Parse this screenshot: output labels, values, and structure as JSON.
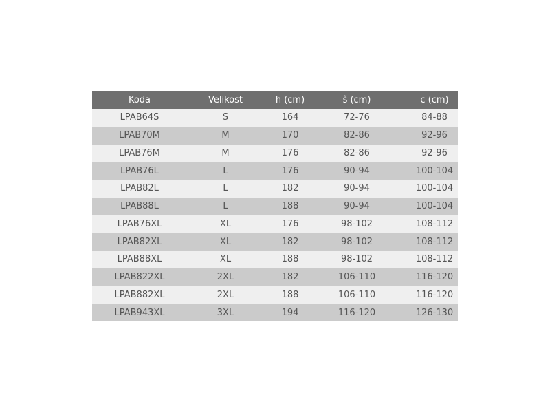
{
  "table": {
    "headers": [
      "Koda",
      "Velikost",
      "h (cm)",
      "š (cm)",
      "c (cm)"
    ],
    "rows": [
      [
        "LPAB64S",
        "S",
        "164",
        "72-76",
        "84-88"
      ],
      [
        "LPAB70M",
        "M",
        "170",
        "82-86",
        "92-96"
      ],
      [
        "LPAB76M",
        "M",
        "176",
        "82-86",
        "92-96"
      ],
      [
        "LPAB76L",
        "L",
        "176",
        "90-94",
        "100-104"
      ],
      [
        "LPAB82L",
        "L",
        "182",
        "90-94",
        "100-104"
      ],
      [
        "LPAB88L",
        "L",
        "188",
        "90-94",
        "100-104"
      ],
      [
        "LPAB76XL",
        "XL",
        "176",
        "98-102",
        "108-112"
      ],
      [
        "LPAB82XL",
        "XL",
        "182",
        "98-102",
        "108-112"
      ],
      [
        "LPAB88XL",
        "XL",
        "188",
        "98-102",
        "108-112"
      ],
      [
        "LPAB822XL",
        "2XL",
        "182",
        "106-110",
        "116-120"
      ],
      [
        "LPAB882XL",
        "2XL",
        "188",
        "106-110",
        "116-120"
      ],
      [
        "LPAB943XL",
        "3XL",
        "194",
        "116-120",
        "126-130"
      ]
    ],
    "colors": {
      "header_bg": "#6f6f6f",
      "row_light": "#efefef",
      "row_dark": "#cbcbcb",
      "text": "#555555"
    }
  }
}
